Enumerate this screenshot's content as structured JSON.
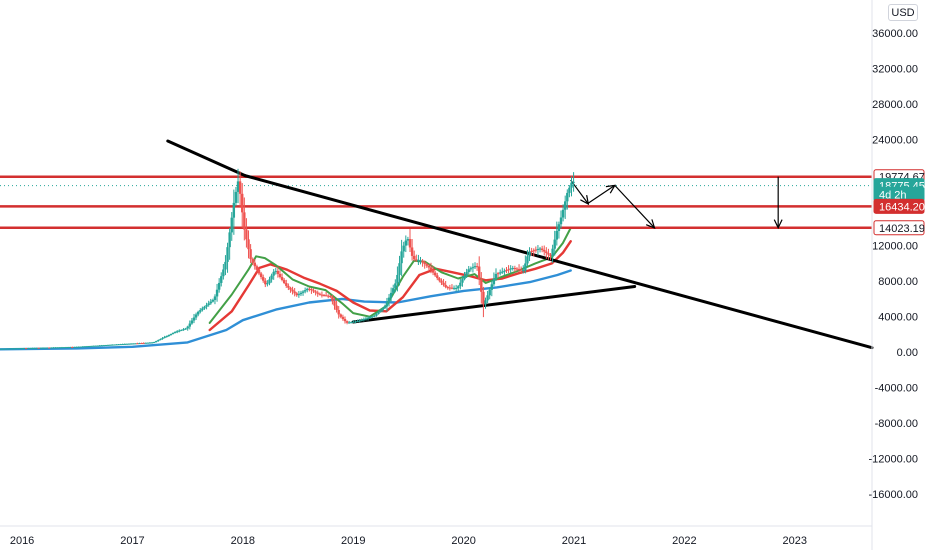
{
  "currency_label": "USD",
  "chart_data": {
    "type": "candlestick",
    "x_tick_labels": [
      "2016",
      "2017",
      "2018",
      "2019",
      "2020",
      "2021",
      "2022",
      "2023"
    ],
    "y_tick_labels": [
      "36000.00",
      "32000.00",
      "28000.00",
      "24000.00",
      "12000.00",
      "8000.00",
      "4000.00",
      "0.00",
      "-4000.00",
      "-8000.00",
      "-12000.00",
      "-16000.00"
    ],
    "y_ticks": [
      36000,
      32000,
      28000,
      24000,
      12000,
      8000,
      4000,
      0,
      -4000,
      -8000,
      -12000,
      -16000
    ],
    "y_range": [
      -19600,
      39700
    ],
    "x_range": [
      2015.8,
      2023.7
    ],
    "price_tags": [
      {
        "label": "19774.67",
        "value": 19774.67,
        "color": "#d32f2f",
        "fill": false
      },
      {
        "label": "18775.45",
        "value": 18775.45,
        "color": "#26a69a",
        "fill": true
      },
      {
        "label": "4d 2h",
        "value": 17800,
        "color": "#26a69a",
        "fill": true
      },
      {
        "label": "16434.20",
        "value": 16434.2,
        "color": "#d32f2f",
        "fill": true
      },
      {
        "label": "14023.19",
        "value": 14023.19,
        "color": "#d32f2f",
        "fill": false
      }
    ],
    "horizontal_levels": [
      19774.67,
      16434.2,
      14023.19
    ],
    "current_price": 18775.45,
    "price_series": [
      [
        2015.8,
        380
      ],
      [
        2016.5,
        600
      ],
      [
        2016.9,
        900
      ],
      [
        2017.2,
        1100
      ],
      [
        2017.4,
        2300
      ],
      [
        2017.5,
        2700
      ],
      [
        2017.6,
        4500
      ],
      [
        2017.75,
        6000
      ],
      [
        2017.85,
        10000
      ],
      [
        2017.93,
        17000
      ],
      [
        2017.97,
        19500
      ],
      [
        2018.02,
        14000
      ],
      [
        2018.08,
        10500
      ],
      [
        2018.15,
        9000
      ],
      [
        2018.22,
        7500
      ],
      [
        2018.3,
        9300
      ],
      [
        2018.4,
        7500
      ],
      [
        2018.5,
        6400
      ],
      [
        2018.6,
        7200
      ],
      [
        2018.7,
        6500
      ],
      [
        2018.8,
        6300
      ],
      [
        2018.88,
        4200
      ],
      [
        2018.95,
        3300
      ],
      [
        2019.05,
        3500
      ],
      [
        2019.2,
        4100
      ],
      [
        2019.3,
        5200
      ],
      [
        2019.4,
        8000
      ],
      [
        2019.45,
        11500
      ],
      [
        2019.5,
        13000
      ],
      [
        2019.55,
        10500
      ],
      [
        2019.62,
        10300
      ],
      [
        2019.7,
        9500
      ],
      [
        2019.78,
        8200
      ],
      [
        2019.85,
        7300
      ],
      [
        2019.95,
        7200
      ],
      [
        2020.05,
        9300
      ],
      [
        2020.13,
        9800
      ],
      [
        2020.19,
        5300
      ],
      [
        2020.23,
        6500
      ],
      [
        2020.3,
        8800
      ],
      [
        2020.45,
        9500
      ],
      [
        2020.55,
        9200
      ],
      [
        2020.6,
        11300
      ],
      [
        2020.7,
        11700
      ],
      [
        2020.8,
        10800
      ],
      [
        2020.85,
        13500
      ],
      [
        2020.9,
        15500
      ],
      [
        2020.95,
        18000
      ],
      [
        2020.99,
        19200
      ]
    ],
    "ema_fast": [
      [
        2017.7,
        3300
      ],
      [
        2017.9,
        6500
      ],
      [
        2018.05,
        9300
      ],
      [
        2018.12,
        10800
      ],
      [
        2018.2,
        10600
      ],
      [
        2018.3,
        9800
      ],
      [
        2018.45,
        8200
      ],
      [
        2018.6,
        7400
      ],
      [
        2018.75,
        7000
      ],
      [
        2018.9,
        5500
      ],
      [
        2019.0,
        4400
      ],
      [
        2019.15,
        4000
      ],
      [
        2019.3,
        5200
      ],
      [
        2019.45,
        8500
      ],
      [
        2019.55,
        10300
      ],
      [
        2019.65,
        10200
      ],
      [
        2019.8,
        9000
      ],
      [
        2019.95,
        8300
      ],
      [
        2020.1,
        8800
      ],
      [
        2020.2,
        7800
      ],
      [
        2020.35,
        8500
      ],
      [
        2020.5,
        9200
      ],
      [
        2020.65,
        10000
      ],
      [
        2020.8,
        10700
      ],
      [
        2020.9,
        12300
      ],
      [
        2020.97,
        14000
      ]
    ],
    "ema_slow": [
      [
        2017.7,
        2500
      ],
      [
        2017.9,
        4600
      ],
      [
        2018.05,
        7500
      ],
      [
        2018.15,
        9500
      ],
      [
        2018.25,
        9900
      ],
      [
        2018.4,
        9300
      ],
      [
        2018.55,
        8400
      ],
      [
        2018.7,
        7700
      ],
      [
        2018.85,
        6900
      ],
      [
        2019.0,
        5600
      ],
      [
        2019.15,
        4700
      ],
      [
        2019.3,
        4600
      ],
      [
        2019.45,
        6200
      ],
      [
        2019.6,
        8700
      ],
      [
        2019.75,
        9400
      ],
      [
        2019.9,
        9000
      ],
      [
        2020.05,
        8600
      ],
      [
        2020.2,
        8100
      ],
      [
        2020.35,
        8300
      ],
      [
        2020.5,
        8900
      ],
      [
        2020.65,
        9400
      ],
      [
        2020.8,
        10000
      ],
      [
        2020.9,
        11200
      ],
      [
        2020.97,
        12500
      ]
    ],
    "ma_long": [
      [
        2015.8,
        320
      ],
      [
        2016.5,
        420
      ],
      [
        2017.0,
        600
      ],
      [
        2017.5,
        1100
      ],
      [
        2017.85,
        2500
      ],
      [
        2018.0,
        3600
      ],
      [
        2018.3,
        4800
      ],
      [
        2018.6,
        5600
      ],
      [
        2018.9,
        6000
      ],
      [
        2019.1,
        5700
      ],
      [
        2019.4,
        5600
      ],
      [
        2019.7,
        6300
      ],
      [
        2020.0,
        6900
      ],
      [
        2020.3,
        7300
      ],
      [
        2020.6,
        7900
      ],
      [
        2020.85,
        8700
      ],
      [
        2020.97,
        9200
      ]
    ],
    "trendlines": [
      {
        "points": [
          [
            2018.02,
            19900
          ],
          [
            2023.7,
            500
          ]
        ],
        "color": "#000000"
      },
      {
        "points": [
          [
            2019.0,
            3400
          ],
          [
            2021.55,
            7400
          ]
        ],
        "color": "#000000"
      },
      {
        "points": [
          [
            2017.32,
            23800
          ],
          [
            2018.02,
            19900
          ]
        ],
        "color": "#000000"
      }
    ],
    "arrows": [
      {
        "from": [
          2020.97,
          19400
        ],
        "to": [
          2021.13,
          16700
        ]
      },
      {
        "from": [
          2021.13,
          16800
        ],
        "to": [
          2021.37,
          18800
        ]
      },
      {
        "from": [
          2021.37,
          18800
        ],
        "to": [
          2021.73,
          14000
        ]
      },
      {
        "from": [
          2022.85,
          19774.67
        ],
        "to": [
          2022.85,
          14023.19
        ]
      }
    ]
  }
}
